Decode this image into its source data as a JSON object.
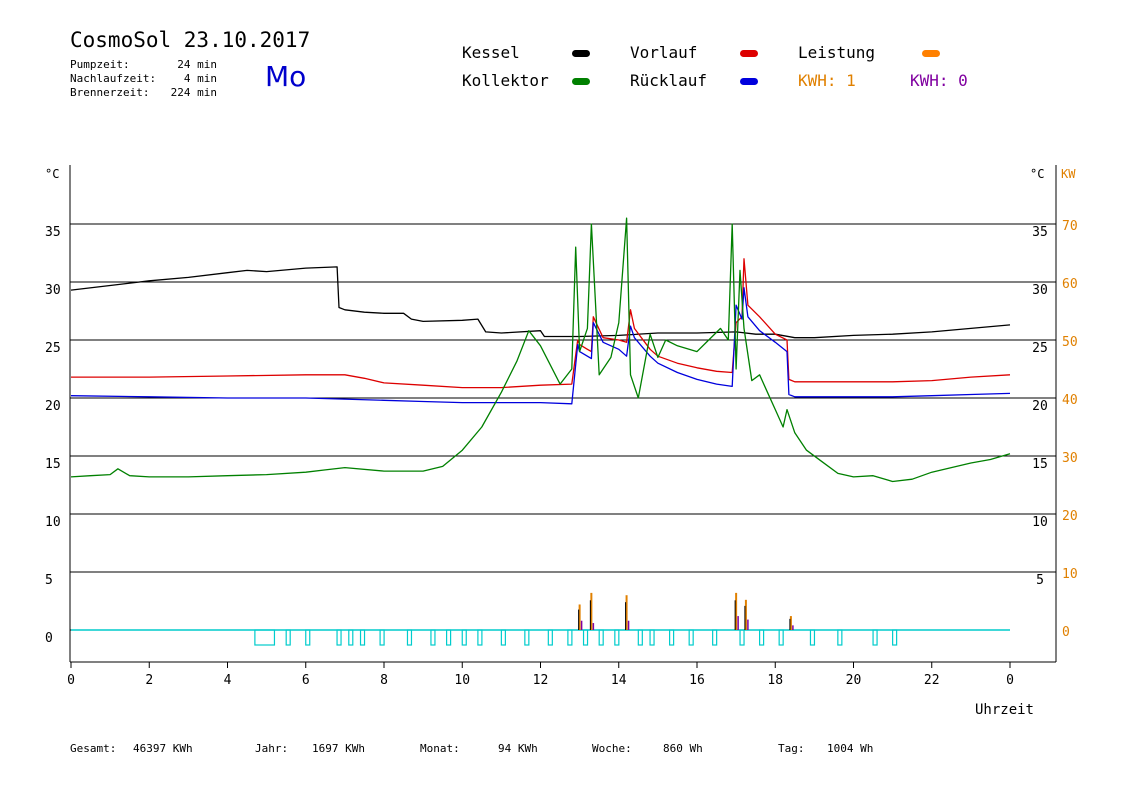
{
  "header": {
    "title": "CosmoSol 23.10.2017",
    "day": "Mo",
    "stats": [
      {
        "label": "Pumpzeit:",
        "value": "24 min"
      },
      {
        "label": "Nachlaufzeit:",
        "value": "4 min"
      },
      {
        "label": "Brennerzeit:",
        "value": "224 min"
      }
    ]
  },
  "legend": [
    {
      "label": "Kessel",
      "color": "#000000"
    },
    {
      "label": "Vorlauf",
      "color": "#dd0000"
    },
    {
      "label": "Leistung",
      "color": "#ff8000"
    },
    {
      "label": "Kollektor",
      "color": "#008000"
    },
    {
      "label": "Rücklauf",
      "color": "#0000dd"
    },
    {
      "label": "KWH: 1",
      "color": "#e08000"
    },
    {
      "label": "KWH: 0",
      "color": "#8000a0"
    }
  ],
  "footer": [
    {
      "label": "Gesamt:",
      "value": "46397 KWh"
    },
    {
      "label": "Jahr:",
      "value": "1697 KWh"
    },
    {
      "label": "Monat:",
      "value": "94 KWh"
    },
    {
      "label": "Woche:",
      "value": "860 Wh"
    },
    {
      "label": "Tag:",
      "value": "1004 Wh"
    }
  ],
  "chart_data": {
    "type": "line",
    "xlabel": "Uhrzeit",
    "x_ticks": [
      "0",
      "2",
      "4",
      "6",
      "8",
      "10",
      "12",
      "14",
      "16",
      "18",
      "20",
      "22",
      "0"
    ],
    "xlim": [
      0,
      24
    ],
    "ylabel_left": "°C",
    "ylabel_right_temp": "°C",
    "ylabel_right_power": "KW",
    "left_ticks": [
      "35",
      "30",
      "25",
      "20",
      "15",
      "10",
      "5",
      "0"
    ],
    "right_temp_ticks": [
      "35",
      "30",
      "25",
      "20",
      "15",
      "10",
      "5"
    ],
    "right_power_ticks": [
      "70",
      "60",
      "50",
      "40",
      "30",
      "20",
      "10",
      "0"
    ],
    "ylim": [
      0,
      35
    ],
    "grid": "horizontal",
    "colors": {
      "cyan": "#00cccc",
      "kwh1": "#e08000",
      "kwh0": "#8000a0"
    },
    "series": [
      {
        "name": "Kessel",
        "color": "#000000",
        "x": [
          0,
          1,
          2,
          3,
          4,
          4.5,
          5,
          6,
          6.8,
          6.85,
          7,
          7.5,
          8,
          8.5,
          8.7,
          9,
          10,
          10.4,
          10.6,
          11,
          12,
          12.1,
          13,
          14,
          15,
          16,
          17,
          17.5,
          18,
          18.5,
          19,
          20,
          21,
          22,
          23,
          24
        ],
        "y": [
          29.3,
          29.7,
          30.1,
          30.4,
          30.8,
          31.0,
          30.9,
          31.2,
          31.3,
          27.8,
          27.6,
          27.4,
          27.3,
          27.3,
          26.8,
          26.6,
          26.7,
          26.8,
          25.7,
          25.6,
          25.8,
          25.3,
          25.3,
          25.4,
          25.6,
          25.6,
          25.7,
          25.5,
          25.5,
          25.2,
          25.2,
          25.4,
          25.5,
          25.7,
          26.0,
          26.3
        ]
      },
      {
        "name": "Vorlauf",
        "color": "#dd0000",
        "x": [
          0,
          2,
          4,
          6,
          7,
          7.5,
          8,
          9,
          10,
          11,
          12,
          12.8,
          12.95,
          13.0,
          13.2,
          13.3,
          13.35,
          13.6,
          14,
          14.2,
          14.3,
          14.4,
          14.8,
          15,
          15.5,
          16,
          16.5,
          16.9,
          17.0,
          17.15,
          17.2,
          17.3,
          17.6,
          18,
          18.3,
          18.35,
          18.5,
          19,
          20,
          21,
          22,
          23,
          24
        ],
        "y": [
          21.8,
          21.8,
          21.9,
          22.0,
          22.0,
          21.7,
          21.3,
          21.1,
          20.9,
          20.9,
          21.1,
          21.2,
          25.0,
          24.6,
          24.2,
          24.0,
          27.0,
          25.2,
          25.0,
          24.8,
          27.6,
          26.0,
          24.2,
          23.6,
          23.0,
          22.6,
          22.3,
          22.2,
          26.5,
          27.0,
          32.0,
          28.0,
          27.0,
          25.5,
          25.0,
          21.6,
          21.4,
          21.4,
          21.4,
          21.4,
          21.5,
          21.8,
          22.0
        ]
      },
      {
        "name": "Rücklauf",
        "color": "#0000dd",
        "x": [
          0,
          2,
          4,
          6,
          8,
          9,
          10,
          11,
          12,
          12.8,
          12.95,
          13.0,
          13.2,
          13.3,
          13.35,
          13.6,
          14,
          14.2,
          14.3,
          14.4,
          14.8,
          15,
          15.5,
          16,
          16.5,
          16.9,
          17.0,
          17.15,
          17.2,
          17.3,
          17.6,
          18,
          18.3,
          18.35,
          18.5,
          19,
          20,
          21,
          22,
          23,
          24
        ],
        "y": [
          20.2,
          20.1,
          20.0,
          20.0,
          19.8,
          19.7,
          19.6,
          19.6,
          19.6,
          19.5,
          24.6,
          24.0,
          23.6,
          23.4,
          26.5,
          24.8,
          24.2,
          23.6,
          26.2,
          25.2,
          23.6,
          23.0,
          22.2,
          21.6,
          21.2,
          21.0,
          28.0,
          26.8,
          29.5,
          27.0,
          25.8,
          24.8,
          24.0,
          20.3,
          20.1,
          20.1,
          20.1,
          20.1,
          20.2,
          20.3,
          20.4
        ]
      },
      {
        "name": "Kollektor",
        "color": "#008000",
        "x": [
          0,
          0.5,
          1,
          1.2,
          1.5,
          2,
          3,
          4,
          5,
          6,
          6.5,
          7,
          8,
          9,
          9.5,
          10,
          10.5,
          11,
          11.4,
          11.7,
          12,
          12.5,
          12.8,
          12.9,
          13.0,
          13.2,
          13.3,
          13.5,
          13.8,
          14.0,
          14.2,
          14.3,
          14.5,
          14.8,
          15,
          15.2,
          15.5,
          16,
          16.3,
          16.6,
          16.8,
          16.9,
          17.0,
          17.1,
          17.2,
          17.4,
          17.6,
          17.8,
          18.0,
          18.2,
          18.3,
          18.5,
          18.8,
          19.2,
          19.6,
          20,
          20.5,
          21,
          21.5,
          22,
          22.5,
          23,
          23.5,
          24
        ],
        "y": [
          13.2,
          13.3,
          13.4,
          13.9,
          13.3,
          13.2,
          13.2,
          13.3,
          13.4,
          13.6,
          13.8,
          14.0,
          13.7,
          13.7,
          14.1,
          15.5,
          17.5,
          20.5,
          23.2,
          25.8,
          24.5,
          21.2,
          22.5,
          33.0,
          24.0,
          26.0,
          35.0,
          22.0,
          23.5,
          26.5,
          35.5,
          22.0,
          20.0,
          25.5,
          23.5,
          25.0,
          24.5,
          24.0,
          25.0,
          26.0,
          25.0,
          35.0,
          22.5,
          31.0,
          26.0,
          21.5,
          22.0,
          20.5,
          19.0,
          17.5,
          19.0,
          17.0,
          15.5,
          14.5,
          13.5,
          13.2,
          13.3,
          12.8,
          13.0,
          13.6,
          14.0,
          14.4,
          14.7,
          15.2
        ]
      }
    ],
    "kwh1_spikes": [
      [
        13.0,
        2.2
      ],
      [
        13.3,
        3.2
      ],
      [
        14.2,
        3.0
      ],
      [
        17.0,
        3.2
      ],
      [
        17.25,
        2.6
      ],
      [
        18.4,
        1.2
      ]
    ],
    "kwh0_spikes": [
      [
        13.0,
        0.8
      ],
      [
        13.3,
        0.6
      ],
      [
        14.2,
        0.8
      ],
      [
        17.0,
        1.2
      ],
      [
        17.25,
        0.9
      ],
      [
        18.4,
        0.4
      ]
    ],
    "pump_pulses": [
      [
        4.7,
        5.2
      ],
      [
        5.5,
        5.6
      ],
      [
        6.0,
        6.1
      ],
      [
        6.8,
        6.9
      ],
      [
        7.1,
        7.2
      ],
      [
        7.4,
        7.5
      ],
      [
        7.9,
        8.0
      ],
      [
        8.6,
        8.7
      ],
      [
        9.2,
        9.3
      ],
      [
        9.6,
        9.7
      ],
      [
        10.0,
        10.1
      ],
      [
        10.4,
        10.5
      ],
      [
        11.0,
        11.1
      ],
      [
        11.6,
        11.7
      ],
      [
        12.2,
        12.3
      ],
      [
        12.7,
        12.8
      ],
      [
        13.1,
        13.2
      ],
      [
        13.5,
        13.6
      ],
      [
        13.9,
        14.0
      ],
      [
        14.5,
        14.6
      ],
      [
        14.8,
        14.9
      ],
      [
        15.3,
        15.4
      ],
      [
        15.8,
        15.9
      ],
      [
        16.4,
        16.5
      ],
      [
        17.1,
        17.2
      ],
      [
        17.6,
        17.7
      ],
      [
        18.1,
        18.2
      ],
      [
        18.9,
        19.0
      ],
      [
        19.6,
        19.7
      ],
      [
        20.5,
        20.6
      ],
      [
        21.0,
        21.1
      ]
    ]
  }
}
